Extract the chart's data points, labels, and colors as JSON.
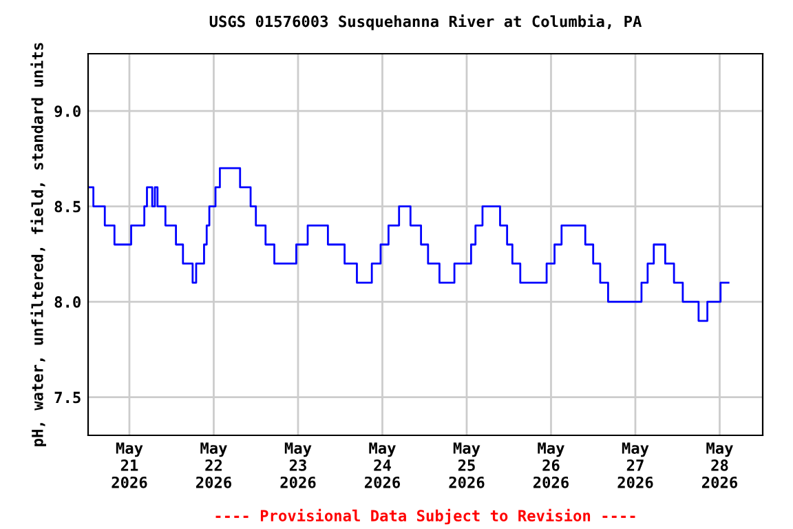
{
  "chart_data": {
    "type": "step",
    "title": "USGS 01576003 Susquehanna River at Columbia, PA",
    "ylabel": "pH, water, unfiltered, field, standard units",
    "annotations": [
      "---- Provisional Data Subject to Revision ----"
    ],
    "x": [
      "2026-05-20T12:30",
      "2026-05-20T13:45",
      "2026-05-20T17:00",
      "2026-05-20T19:45",
      "2026-05-21T00:30",
      "2026-05-21T04:15",
      "2026-05-21T05:00",
      "2026-05-21T06:30",
      "2026-05-21T07:15",
      "2026-05-21T08:00",
      "2026-05-21T10:15",
      "2026-05-21T13:15",
      "2026-05-21T15:15",
      "2026-05-21T18:00",
      "2026-05-21T19:00",
      "2026-05-21T21:15",
      "2026-05-21T22:00",
      "2026-05-21T22:45",
      "2026-05-22T00:30",
      "2026-05-22T01:45",
      "2026-05-22T07:30",
      "2026-05-22T10:30",
      "2026-05-22T12:00",
      "2026-05-22T14:45",
      "2026-05-22T17:15",
      "2026-05-22T23:30",
      "2026-05-23T02:45",
      "2026-05-23T08:30",
      "2026-05-23T13:15",
      "2026-05-23T16:45",
      "2026-05-23T21:00",
      "2026-05-23T23:30",
      "2026-05-24T01:45",
      "2026-05-24T04:45",
      "2026-05-24T08:00",
      "2026-05-24T11:00",
      "2026-05-24T13:00",
      "2026-05-24T16:15",
      "2026-05-24T20:30",
      "2026-05-25T01:15",
      "2026-05-25T02:30",
      "2026-05-25T04:30",
      "2026-05-25T09:30",
      "2026-05-25T11:30",
      "2026-05-25T13:00",
      "2026-05-25T15:15",
      "2026-05-25T22:45",
      "2026-05-26T01:00",
      "2026-05-26T03:00",
      "2026-05-26T09:45",
      "2026-05-26T12:00",
      "2026-05-26T14:00",
      "2026-05-26T16:15",
      "2026-05-27T01:45",
      "2026-05-27T03:30",
      "2026-05-27T05:15",
      "2026-05-27T08:30",
      "2026-05-27T11:00",
      "2026-05-27T13:30",
      "2026-05-27T18:00",
      "2026-05-27T20:30",
      "2026-05-28T00:15",
      "2026-05-28T02:30"
    ],
    "series": [
      {
        "color": "#0000ff",
        "values": [
          8.6,
          8.5,
          8.4,
          8.3,
          8.4,
          8.5,
          8.6,
          8.5,
          8.6,
          8.5,
          8.4,
          8.3,
          8.2,
          8.1,
          8.2,
          8.3,
          8.4,
          8.5,
          8.6,
          8.7,
          8.6,
          8.5,
          8.4,
          8.3,
          8.2,
          8.3,
          8.4,
          8.3,
          8.2,
          8.1,
          8.2,
          8.3,
          8.4,
          8.5,
          8.4,
          8.3,
          8.2,
          8.1,
          8.2,
          8.3,
          8.4,
          8.5,
          8.4,
          8.3,
          8.2,
          8.1,
          8.2,
          8.3,
          8.4,
          8.3,
          8.2,
          8.1,
          8.0,
          8.1,
          8.2,
          8.3,
          8.2,
          8.1,
          8.0,
          7.9,
          8.0,
          8.1,
          8.1
        ]
      }
    ],
    "xlim": [
      "2026-05-20T12:15",
      "2026-05-28T12:15"
    ],
    "xticks": [
      {
        "value": "2026-05-21",
        "label": "May\n21\n2026"
      },
      {
        "value": "2026-05-22",
        "label": "May\n22\n2026"
      },
      {
        "value": "2026-05-23",
        "label": "May\n23\n2026"
      },
      {
        "value": "2026-05-24",
        "label": "May\n24\n2026"
      },
      {
        "value": "2026-05-25",
        "label": "May\n25\n2026"
      },
      {
        "value": "2026-05-26",
        "label": "May\n26\n2026"
      },
      {
        "value": "2026-05-27",
        "label": "May\n27\n2026"
      },
      {
        "value": "2026-05-28",
        "label": "May\n28\n2026"
      }
    ],
    "ylim": [
      7.3,
      9.3
    ],
    "yticks": [
      {
        "value": 7.5,
        "label": "7.5"
      },
      {
        "value": 8,
        "label": "8.0"
      },
      {
        "value": 8.5,
        "label": "8.5"
      },
      {
        "value": 9,
        "label": "9.0"
      }
    ],
    "grid": true,
    "legend": false
  }
}
